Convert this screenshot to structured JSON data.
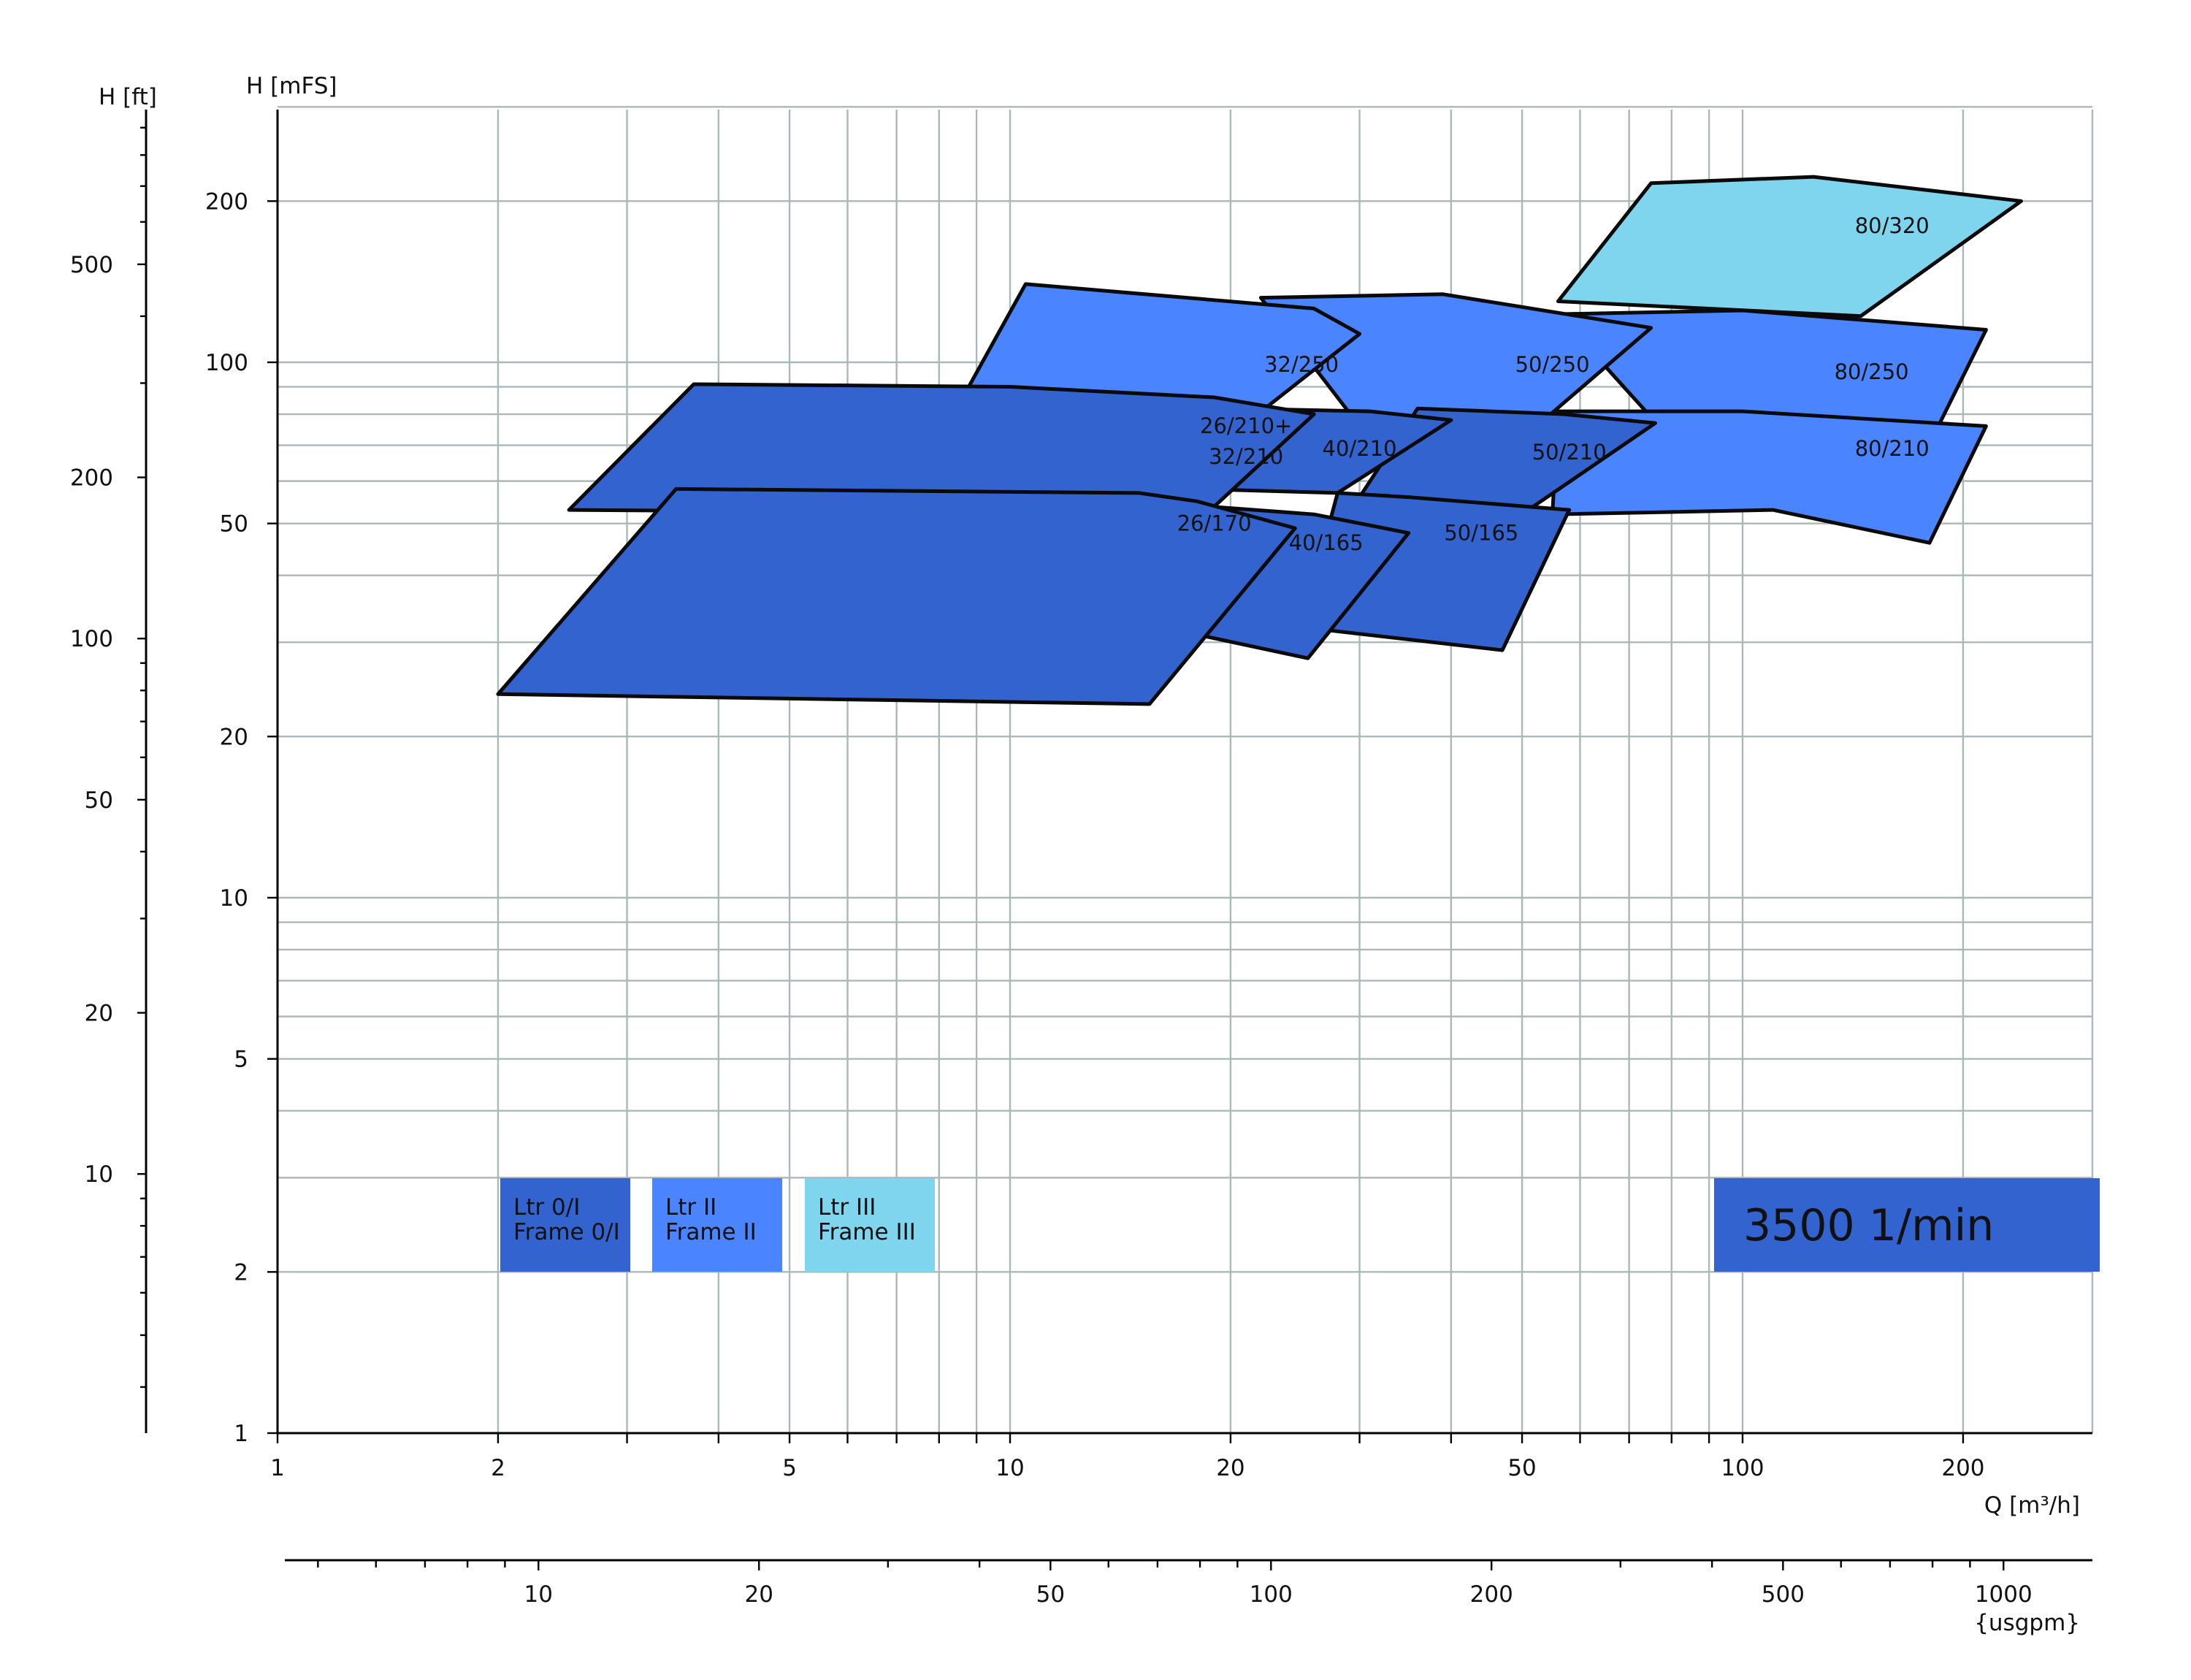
{
  "chart_data": {
    "type": "area",
    "scale": "log-log",
    "grid": true,
    "x_axis": {
      "title": "Q [m³/h]",
      "ticks": [
        1,
        2,
        5,
        10,
        20,
        50,
        100,
        200
      ],
      "range": [
        1,
        250
      ]
    },
    "x2_axis": {
      "title": "{usgpm}",
      "ticks": [
        10,
        20,
        50,
        100,
        200,
        500,
        1000
      ]
    },
    "y_axis": {
      "title": "H [mFS]",
      "ticks": [
        1,
        2,
        5,
        10,
        20,
        50,
        100,
        200
      ],
      "range": [
        1,
        300
      ]
    },
    "y2_axis": {
      "title": "H [ft]",
      "ticks": [
        10,
        20,
        50,
        100,
        200,
        500
      ]
    },
    "legend": [
      {
        "line1": "Ltr 0/I",
        "line2": "Frame 0/I",
        "color": "#3363cf"
      },
      {
        "line1": "Ltr II",
        "line2": "Frame II",
        "color": "#4a84ff"
      },
      {
        "line1": "Ltr III",
        "line2": "Frame III",
        "color": "#80d5ee"
      }
    ],
    "speed_label": "3500 1/min",
    "regions": [
      {
        "label": "80/320",
        "frame": "III",
        "color": "#80d5ee",
        "label_at": [
          160,
          180
        ],
        "outline": [
          [
            75,
            216
          ],
          [
            125,
            222
          ],
          [
            240,
            200
          ],
          [
            145,
            122
          ],
          [
            56,
            130
          ]
        ]
      },
      {
        "label": "80/250",
        "frame": "II",
        "color": "#4a84ff",
        "label_at": [
          150,
          96
        ],
        "outline": [
          [
            56,
            123
          ],
          [
            100,
            125
          ],
          [
            215,
            115
          ],
          [
            185,
            76
          ],
          [
            84,
            79
          ],
          [
            70,
            80
          ],
          [
            75,
            79
          ]
        ]
      },
      {
        "label": "50/250",
        "frame": "II",
        "color": "#4a84ff",
        "label_at": [
          55,
          99
        ],
        "outline": [
          [
            22,
            132
          ],
          [
            39,
            134
          ],
          [
            75,
            116
          ],
          [
            50,
            72
          ],
          [
            30,
            76
          ]
        ]
      },
      {
        "label": "32/250",
        "frame": "II",
        "color": "#4a84ff",
        "label_at": [
          25,
          99
        ],
        "outline": [
          [
            10.5,
            140
          ],
          [
            26,
            126
          ],
          [
            30,
            113
          ],
          [
            19.5,
            71
          ],
          [
            8.2,
            76
          ]
        ]
      },
      {
        "label": "80/210",
        "frame": "II",
        "color": "#4a84ff",
        "label_at": [
          160,
          69
        ],
        "outline": [
          [
            56,
            81
          ],
          [
            100,
            81
          ],
          [
            215,
            76
          ],
          [
            180,
            46
          ],
          [
            110,
            53
          ],
          [
            55,
            52
          ]
        ]
      },
      {
        "label": "50/210",
        "frame": "Ltr 0/I",
        "color": "#3363cf",
        "label_at": [
          58,
          68
        ],
        "outline": [
          [
            36,
            82
          ],
          [
            57,
            80
          ],
          [
            76,
            77
          ],
          [
            51,
            53
          ],
          [
            30,
            56
          ]
        ]
      },
      {
        "label": "40/210",
        "frame": "Ltr 0/I",
        "color": "#3363cf",
        "label_at": [
          30,
          69
        ],
        "outline": [
          [
            20,
            82
          ],
          [
            31,
            81
          ],
          [
            40,
            78
          ],
          [
            28,
            57
          ],
          [
            18,
            58
          ]
        ]
      },
      {
        "label": "50/165",
        "frame": "Ltr 0/I",
        "color": "#3363cf",
        "label_at": [
          44,
          48
        ],
        "outline": [
          [
            28,
            57
          ],
          [
            35,
            56
          ],
          [
            58,
            53
          ],
          [
            47,
            29
          ],
          [
            25,
            32
          ]
        ]
      },
      {
        "label": "40/165",
        "frame": "Ltr 0/I",
        "color": "#3363cf",
        "label_at": [
          27,
          46
        ],
        "outline": [
          [
            18,
            54
          ],
          [
            26,
            52
          ],
          [
            35,
            48
          ],
          [
            25.5,
            28
          ],
          [
            18,
            31
          ]
        ]
      },
      {
        "label": "26/210+ 32/210",
        "frame": "Ltr 0/I",
        "color": "#3363cf",
        "label_at": [
          21,
          71
        ],
        "outline": [
          [
            3.7,
            91
          ],
          [
            10,
            90
          ],
          [
            19,
            86
          ],
          [
            26,
            80
          ],
          [
            18.5,
            52
          ],
          [
            2.5,
            53
          ]
        ]
      },
      {
        "label": "26/170",
        "frame": "Ltr 0/I",
        "color": "#3363cf",
        "label_at": [
          19,
          50
        ],
        "outline": [
          [
            3.5,
            58
          ],
          [
            15,
            57
          ],
          [
            18,
            55
          ],
          [
            24.5,
            49
          ],
          [
            15.5,
            23
          ],
          [
            2,
            24
          ]
        ]
      }
    ]
  }
}
